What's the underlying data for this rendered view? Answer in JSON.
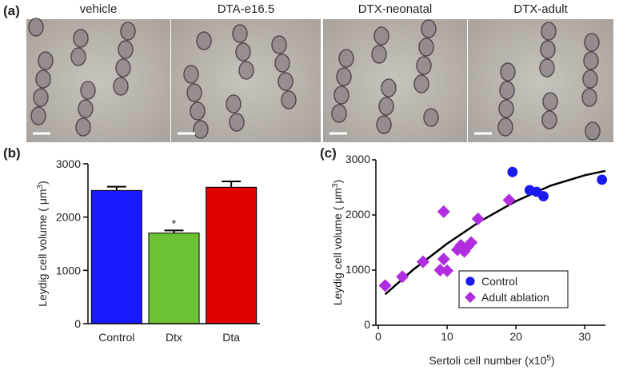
{
  "panels": {
    "a": "(a)",
    "b": "(b)",
    "c": "(c)"
  },
  "images": [
    "vehicle",
    "DTA-e16.5",
    "DTX-neonatal",
    "DTX-adult"
  ],
  "chart_data": [
    {
      "type": "bar",
      "categories": [
        "Control",
        "Dtx",
        "Dta"
      ],
      "values": [
        2500,
        1700,
        2560
      ],
      "errors": [
        70,
        50,
        110
      ],
      "colors": [
        "#1a1aff",
        "#6cc233",
        "#e00000"
      ],
      "ylabel": {
        "text": "Leydig cell volume ( μm",
        "sup": "3",
        "end": ")"
      },
      "annotations": [
        {
          "category": 1,
          "text": "*"
        }
      ],
      "ylim": [
        0,
        3000
      ],
      "yticks": [
        0,
        1000,
        2000,
        3000
      ]
    },
    {
      "type": "scatter",
      "xlabel": {
        "text": "Sertoli cell number (x10",
        "sup": "5",
        "end": ")"
      },
      "ylabel": {
        "text": "Leydig cell volume ( μm",
        "sup": "3",
        "end": ")"
      },
      "series": [
        {
          "name": "Control",
          "color": "#1a1aee",
          "marker": "circle",
          "x": [
            19.5,
            22,
            23,
            24,
            32.5
          ],
          "values": [
            2780,
            2450,
            2420,
            2340,
            2640
          ]
        },
        {
          "name": "Adult ablation",
          "color": "#b02ce0",
          "marker": "diamond",
          "x": [
            1,
            3.5,
            6.5,
            9,
            9.5,
            10,
            9.5,
            11.5,
            12,
            12.5,
            13,
            13.5,
            14.5,
            19
          ],
          "values": [
            720,
            880,
            1150,
            1000,
            1200,
            990,
            2060,
            1370,
            1450,
            1340,
            1430,
            1500,
            1930,
            2270
          ]
        }
      ],
      "fit": {
        "color": "#000000",
        "x": [
          1,
          5,
          10,
          15,
          20,
          25,
          30,
          33
        ],
        "values": [
          560,
          1000,
          1480,
          1900,
          2250,
          2530,
          2720,
          2800
        ]
      },
      "legend": "lower right",
      "xlim": [
        0,
        33
      ],
      "xticks": [
        0,
        10,
        20,
        30
      ],
      "ylim": [
        0,
        3000
      ],
      "yticks": [
        0,
        1000,
        2000,
        3000
      ]
    }
  ]
}
